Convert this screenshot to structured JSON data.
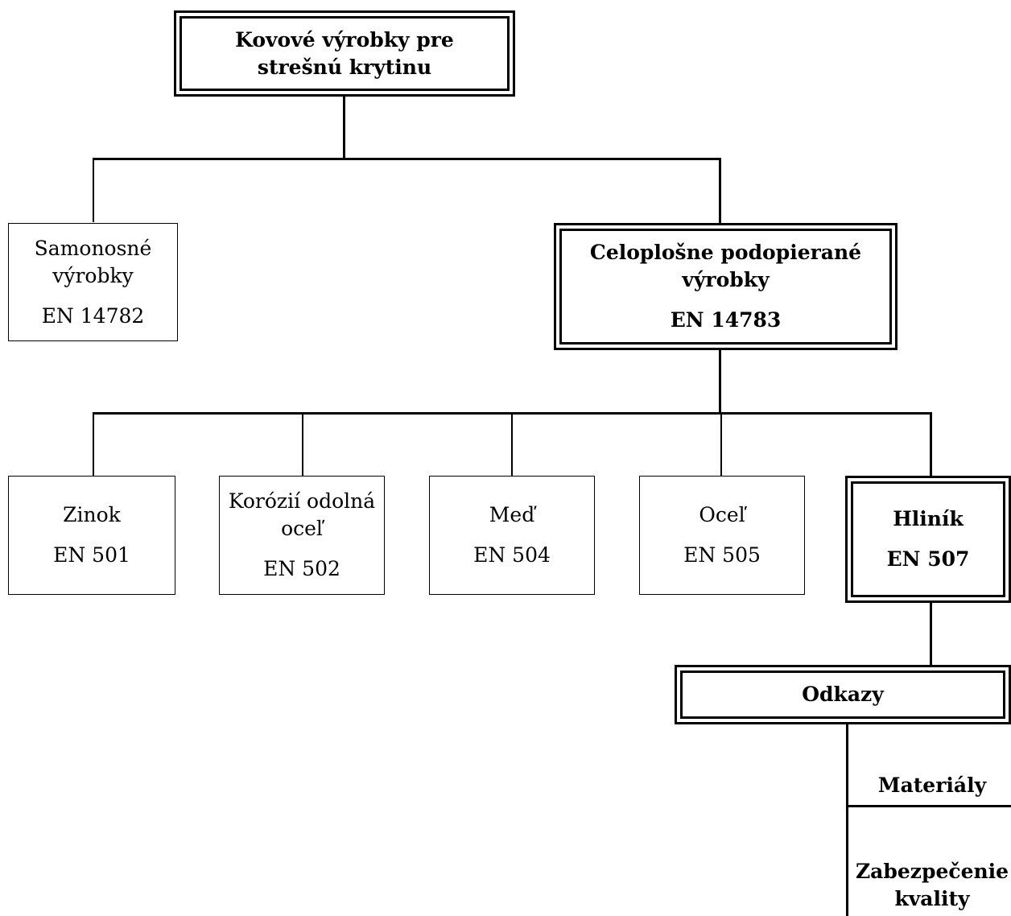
{
  "root": {
    "line1": "Kovové výrobky pre",
    "line2": "strešnú krytinu"
  },
  "self_supporting": {
    "line1": "Samonosné",
    "line2": "výrobky",
    "standard": "EN 14782"
  },
  "fully_supported": {
    "line1": "Celoplošne podopierané",
    "line2": "výrobky",
    "standard": "EN 14783"
  },
  "materials": [
    {
      "line1": "Zinok",
      "standard": "EN 501"
    },
    {
      "line1": "Korózií odolná",
      "line2": "oceľ",
      "standard": "EN 502"
    },
    {
      "line1": "Meď",
      "standard": "EN 504"
    },
    {
      "line1": "Oceľ",
      "standard": "EN 505"
    },
    {
      "line1": "Hliník",
      "standard": "EN 507"
    }
  ],
  "references": {
    "title": "Odkazy",
    "items": [
      "Materiály",
      "Zabezpečenie",
      "kvality"
    ]
  }
}
